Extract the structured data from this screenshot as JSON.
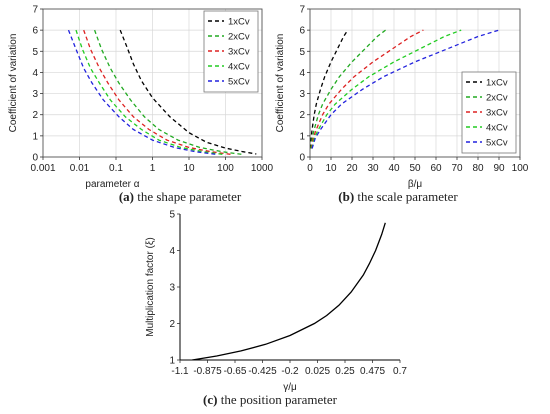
{
  "chart_data": [
    {
      "type": "line",
      "panel": "a",
      "caption_letter": "(a)",
      "caption_text": " the shape parameter",
      "xlabel": "parameter α",
      "ylabel": "Coefficient of variation",
      "x_scale": "log",
      "xlim": [
        0.001,
        1000
      ],
      "ylim": [
        0,
        7
      ],
      "x_ticks": [
        "0.001",
        "0.01",
        "0.1",
        "1",
        "10",
        "100",
        "1000"
      ],
      "y_ticks": [
        "0",
        "1",
        "2",
        "3",
        "4",
        "5",
        "6",
        "7"
      ],
      "grid": true,
      "legend_position": "top-right",
      "series": [
        {
          "name": "1xCv",
          "color": "#000000",
          "x": [
            0.13,
            0.2,
            0.3,
            0.5,
            1,
            3,
            10,
            30,
            100,
            300,
            700
          ],
          "y": [
            6,
            5.2,
            4.4,
            3.6,
            2.8,
            1.9,
            1.15,
            0.7,
            0.42,
            0.25,
            0.14
          ]
        },
        {
          "name": "2xCv",
          "color": "#22aa22",
          "x": [
            0.026,
            0.04,
            0.07,
            0.12,
            0.25,
            0.6,
            1.5,
            5,
            20,
            80,
            300
          ],
          "y": [
            6,
            5.1,
            4.2,
            3.5,
            2.7,
            1.9,
            1.3,
            0.8,
            0.45,
            0.25,
            0.12
          ]
        },
        {
          "name": "3xCv",
          "color": "#dd2222",
          "x": [
            0.013,
            0.02,
            0.035,
            0.06,
            0.12,
            0.3,
            0.8,
            2.5,
            10,
            40,
            150
          ],
          "y": [
            6,
            5.1,
            4.2,
            3.5,
            2.7,
            1.9,
            1.3,
            0.8,
            0.45,
            0.25,
            0.12
          ]
        },
        {
          "name": "4xCv",
          "color": "#22cc22",
          "x": [
            0.008,
            0.012,
            0.02,
            0.035,
            0.07,
            0.18,
            0.5,
            1.5,
            6,
            25,
            90
          ],
          "y": [
            6,
            5.1,
            4.2,
            3.5,
            2.7,
            1.9,
            1.3,
            0.8,
            0.45,
            0.25,
            0.12
          ]
        },
        {
          "name": "5xCv",
          "color": "#2222dd",
          "x": [
            0.005,
            0.008,
            0.013,
            0.022,
            0.045,
            0.12,
            0.3,
            1,
            4,
            15,
            60
          ],
          "y": [
            6,
            5.1,
            4.2,
            3.5,
            2.7,
            1.9,
            1.3,
            0.8,
            0.45,
            0.25,
            0.12
          ]
        }
      ]
    },
    {
      "type": "line",
      "panel": "b",
      "caption_letter": "(b)",
      "caption_text": " the scale parameter",
      "xlabel": "β/μ",
      "ylabel": "Coefficient of variation",
      "x_scale": "linear",
      "xlim": [
        0,
        100
      ],
      "ylim": [
        0,
        7
      ],
      "x_ticks": [
        "0",
        "10",
        "20",
        "30",
        "40",
        "50",
        "60",
        "70",
        "80",
        "90",
        "100"
      ],
      "y_ticks": [
        "0",
        "1",
        "2",
        "3",
        "4",
        "5",
        "6",
        "7"
      ],
      "grid": true,
      "legend_position": "bottom-right",
      "series": [
        {
          "name": "1xCv",
          "color": "#000000",
          "x": [
            0.2,
            0.5,
            1,
            2,
            3,
            5,
            7,
            10,
            13,
            16,
            18
          ],
          "y": [
            0.4,
            0.9,
            1.3,
            2.0,
            2.5,
            3.2,
            3.8,
            4.5,
            5.1,
            5.7,
            6.0
          ]
        },
        {
          "name": "2xCv",
          "color": "#22aa22",
          "x": [
            0.4,
            1,
            2,
            4,
            6,
            10,
            14,
            20,
            26,
            32,
            36
          ],
          "y": [
            0.4,
            0.9,
            1.3,
            2.0,
            2.5,
            3.2,
            3.8,
            4.5,
            5.1,
            5.7,
            6.0
          ]
        },
        {
          "name": "3xCv",
          "color": "#dd2222",
          "x": [
            0.6,
            1.5,
            3,
            6,
            9,
            15,
            21,
            30,
            39,
            48,
            54
          ],
          "y": [
            0.4,
            0.9,
            1.3,
            2.0,
            2.5,
            3.2,
            3.8,
            4.5,
            5.1,
            5.7,
            6.0
          ]
        },
        {
          "name": "4xCv",
          "color": "#22cc22",
          "x": [
            0.8,
            2,
            4,
            8,
            12,
            20,
            28,
            40,
            52,
            64,
            72
          ],
          "y": [
            0.4,
            0.9,
            1.3,
            2.0,
            2.5,
            3.2,
            3.8,
            4.5,
            5.1,
            5.7,
            6.0
          ]
        },
        {
          "name": "5xCv",
          "color": "#2222dd",
          "x": [
            1,
            2.5,
            5,
            10,
            15,
            25,
            35,
            50,
            65,
            80,
            90
          ],
          "y": [
            0.4,
            0.9,
            1.3,
            2.0,
            2.5,
            3.2,
            3.8,
            4.5,
            5.1,
            5.7,
            6.0
          ]
        }
      ]
    },
    {
      "type": "line",
      "panel": "c",
      "caption_letter": "(c)",
      "caption_text": " the position parameter",
      "xlabel": "γ/μ",
      "ylabel": "Multiplication factor (ξ)",
      "x_scale": "linear",
      "xlim": [
        -1.1,
        0.7
      ],
      "ylim": [
        1,
        5
      ],
      "x_ticks": [
        "-1.1",
        "-0.875",
        "-0.65",
        "-0.425",
        "-0.2",
        "0.025",
        "0.25",
        "0.475",
        "0.7"
      ],
      "y_ticks": [
        "1",
        "2",
        "3",
        "4",
        "5"
      ],
      "grid": false,
      "series": [
        {
          "name": "",
          "color": "#000000",
          "x": [
            -1.0,
            -0.8,
            -0.6,
            -0.4,
            -0.2,
            0.0,
            0.1,
            0.2,
            0.3,
            0.4,
            0.45,
            0.5,
            0.55,
            0.58
          ],
          "y": [
            1.0,
            1.11,
            1.25,
            1.43,
            1.67,
            2.0,
            2.22,
            2.5,
            2.86,
            3.33,
            3.64,
            4.0,
            4.44,
            4.76
          ]
        }
      ]
    }
  ]
}
